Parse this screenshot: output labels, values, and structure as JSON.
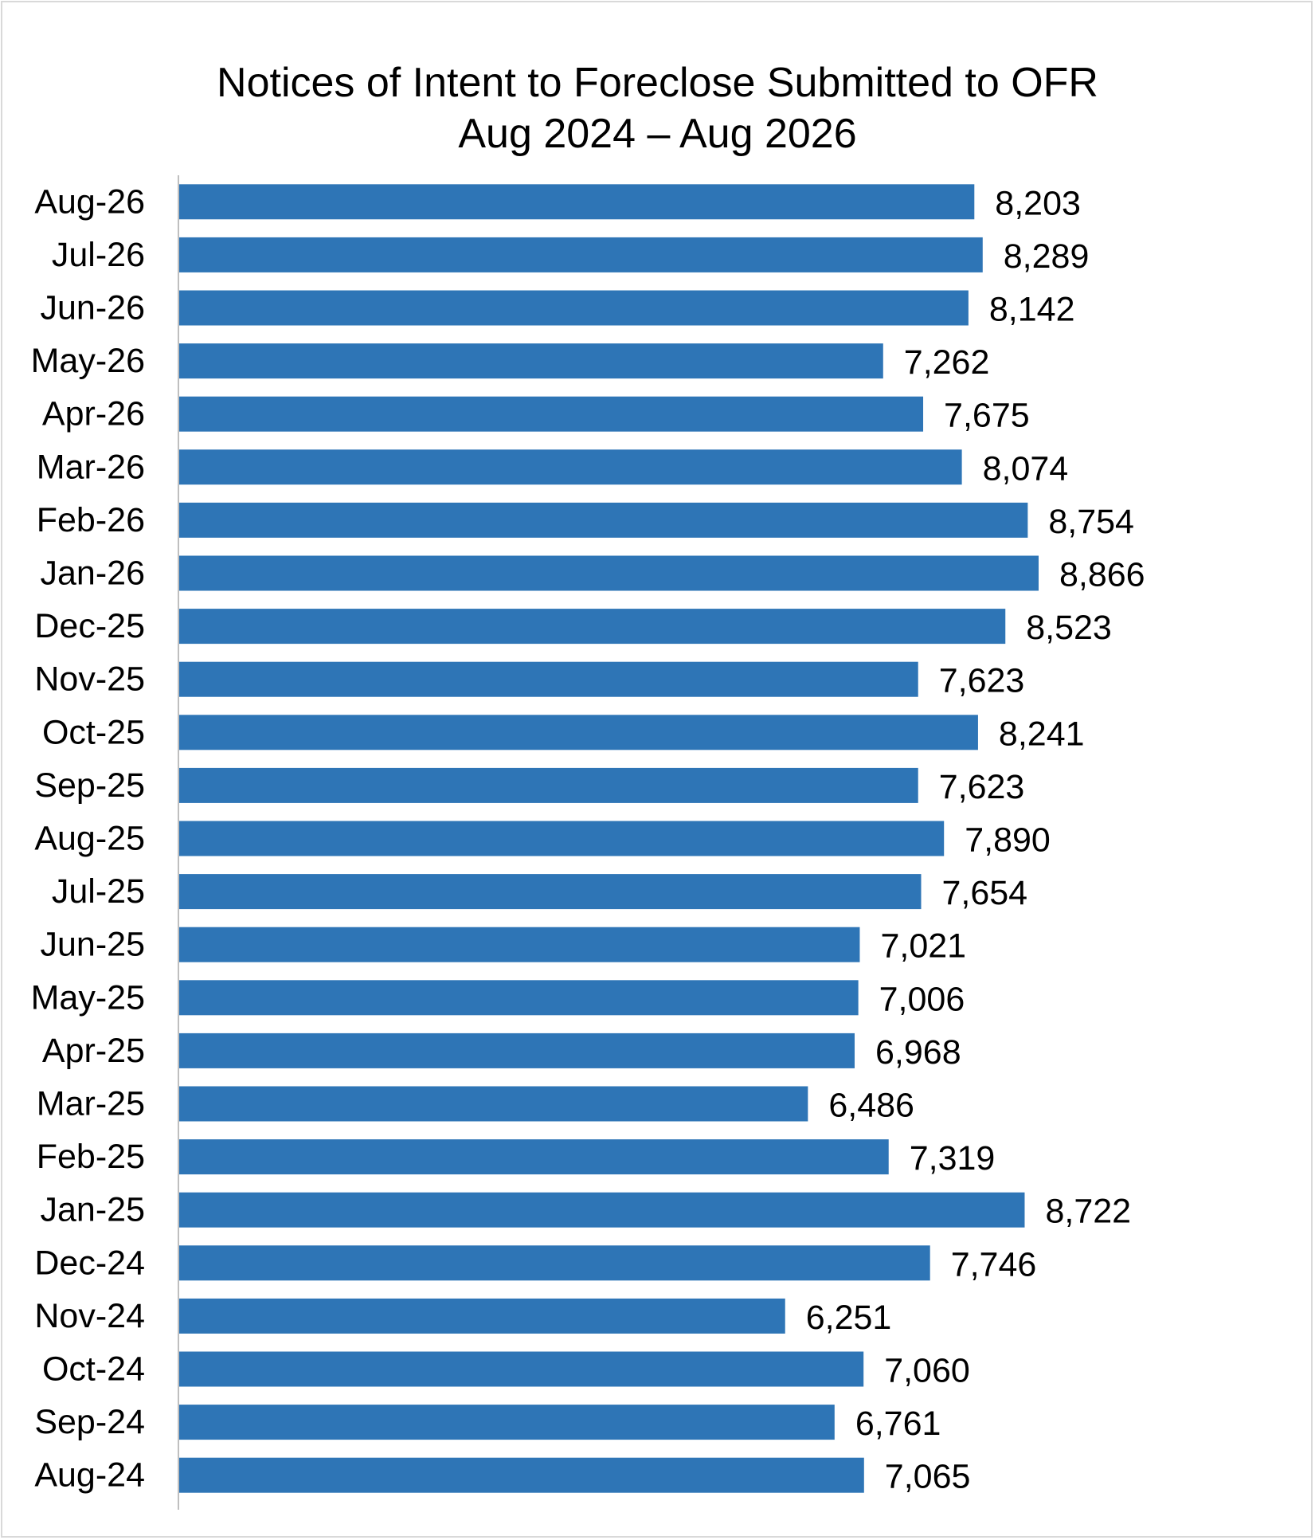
{
  "chart_data": {
    "type": "bar",
    "orientation": "horizontal",
    "title": "Notices of Intent to Foreclose Submitted to OFR",
    "subtitle": "Aug 2024 – Aug 2026",
    "categories": [
      "Aug-26",
      "Jul-26",
      "Jun-26",
      "May-26",
      "Apr-26",
      "Mar-26",
      "Feb-26",
      "Jan-26",
      "Dec-25",
      "Nov-25",
      "Oct-25",
      "Sep-25",
      "Aug-25",
      "Jul-25",
      "Jun-25",
      "May-25",
      "Apr-25",
      "Mar-25",
      "Feb-25",
      "Jan-25",
      "Dec-24",
      "Nov-24",
      "Oct-24",
      "Sep-24",
      "Aug-24"
    ],
    "values": [
      8203,
      8289,
      8142,
      7262,
      7675,
      8074,
      8754,
      8866,
      8523,
      7623,
      8241,
      7623,
      7890,
      7654,
      7021,
      7006,
      6968,
      6486,
      7319,
      8722,
      7746,
      6251,
      7060,
      6761,
      7065
    ],
    "value_labels": [
      "8,203",
      "8,289",
      "8,142",
      "7,262",
      "7,675",
      "8,074",
      "8,754",
      "8,866",
      "8,523",
      "7,623",
      "8,241",
      "7,623",
      "7,890",
      "7,654",
      "7,021",
      "7,006",
      "6,968",
      "6,486",
      "7,319",
      "8,722",
      "7,746",
      "6,251",
      "7,060",
      "6,761",
      "7,065"
    ],
    "xlim": [
      0,
      10000
    ],
    "grid": false,
    "legend": "none",
    "bar_color": "#2E75B6"
  }
}
